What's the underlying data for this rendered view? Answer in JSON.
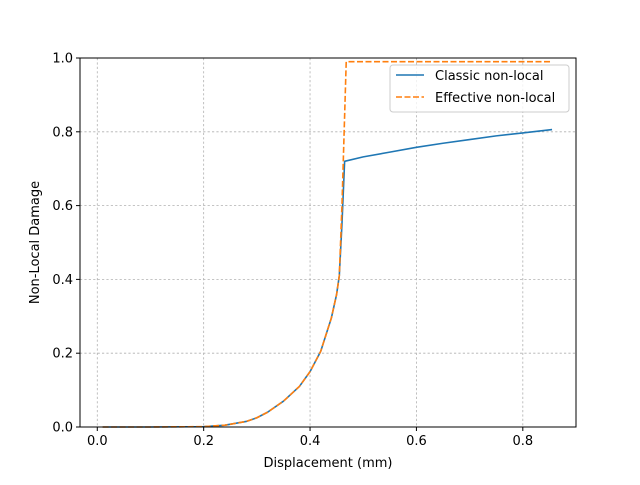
{
  "chart_data": {
    "type": "line",
    "title": "",
    "xlabel": "Displacement (mm)",
    "ylabel": "Non-Local Damage",
    "xlim": [
      -0.0325,
      0.9
    ],
    "ylim": [
      0.0,
      1.0
    ],
    "xticks": [
      0.0,
      0.2,
      0.4,
      0.6,
      0.8
    ],
    "xtick_labels": [
      "0.0",
      "0.2",
      "0.4",
      "0.6",
      "0.8"
    ],
    "yticks": [
      0.0,
      0.2,
      0.4,
      0.6,
      0.8,
      1.0
    ],
    "ytick_labels": [
      "0.0",
      "0.2",
      "0.4",
      "0.6",
      "0.8",
      "1.0"
    ],
    "grid": true,
    "legend_position": "upper right",
    "series": [
      {
        "name": "Classic non-local",
        "color": "#1f77b4",
        "style": "solid",
        "points": [
          [
            0.01,
            0.0
          ],
          [
            0.1,
            0.0
          ],
          [
            0.2,
            0.001
          ],
          [
            0.24,
            0.005
          ],
          [
            0.28,
            0.015
          ],
          [
            0.3,
            0.025
          ],
          [
            0.32,
            0.04
          ],
          [
            0.35,
            0.07
          ],
          [
            0.38,
            0.11
          ],
          [
            0.4,
            0.15
          ],
          [
            0.42,
            0.205
          ],
          [
            0.44,
            0.295
          ],
          [
            0.45,
            0.36
          ],
          [
            0.455,
            0.41
          ],
          [
            0.46,
            0.55
          ],
          [
            0.465,
            0.72
          ],
          [
            0.5,
            0.732
          ],
          [
            0.55,
            0.745
          ],
          [
            0.6,
            0.758
          ],
          [
            0.65,
            0.769
          ],
          [
            0.7,
            0.779
          ],
          [
            0.75,
            0.789
          ],
          [
            0.8,
            0.797
          ],
          [
            0.855,
            0.806
          ]
        ]
      },
      {
        "name": "Effective non-local",
        "color": "#ff7f0e",
        "style": "dashed",
        "points": [
          [
            0.01,
            0.0
          ],
          [
            0.1,
            0.0
          ],
          [
            0.2,
            0.001
          ],
          [
            0.24,
            0.005
          ],
          [
            0.28,
            0.015
          ],
          [
            0.3,
            0.025
          ],
          [
            0.32,
            0.04
          ],
          [
            0.35,
            0.07
          ],
          [
            0.38,
            0.11
          ],
          [
            0.4,
            0.15
          ],
          [
            0.42,
            0.205
          ],
          [
            0.44,
            0.295
          ],
          [
            0.45,
            0.36
          ],
          [
            0.455,
            0.41
          ],
          [
            0.46,
            0.6
          ],
          [
            0.468,
            0.99
          ],
          [
            0.6,
            0.99
          ],
          [
            0.75,
            0.99
          ],
          [
            0.855,
            0.99
          ]
        ]
      }
    ]
  }
}
